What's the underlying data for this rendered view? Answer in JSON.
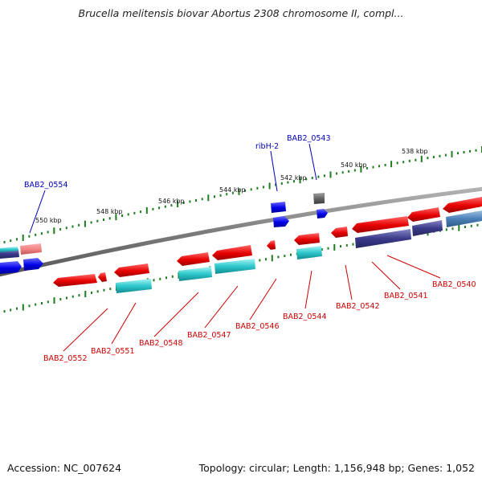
{
  "title": "Brucella melitensis biovar Abortus 2308 chromosome II, compl...",
  "footer": {
    "accession": "Accession: NC_007624",
    "topology": "Topology: circular; Length: 1,156,948 bp; Genes: 1,052"
  },
  "ticks": [
    "538 kbp",
    "540 kbp",
    "542 kbp",
    "544 kbp",
    "546 kbp",
    "548 kbp",
    "550 kbp"
  ],
  "gene_labels_top": [
    "ribH-2",
    "BAB2_0543",
    "BAB2_0554"
  ],
  "gene_labels_bottom": [
    "BAB2_0540",
    "BAB2_0541",
    "BAB2_0542",
    "BAB2_0544",
    "BAB2_0546",
    "BAB2_0547",
    "BAB2_0548",
    "BAB2_0551",
    "BAB2_0552"
  ],
  "colors": {
    "backbone": "#808080",
    "tick": "#1e7d1e",
    "gene_red": "#e60000",
    "gene_blue": "#0000e6",
    "gene_cyan": "#20c4c8",
    "gene_navy": "#404090",
    "gene_pink": "#f08080",
    "gene_gray": "#606060"
  }
}
